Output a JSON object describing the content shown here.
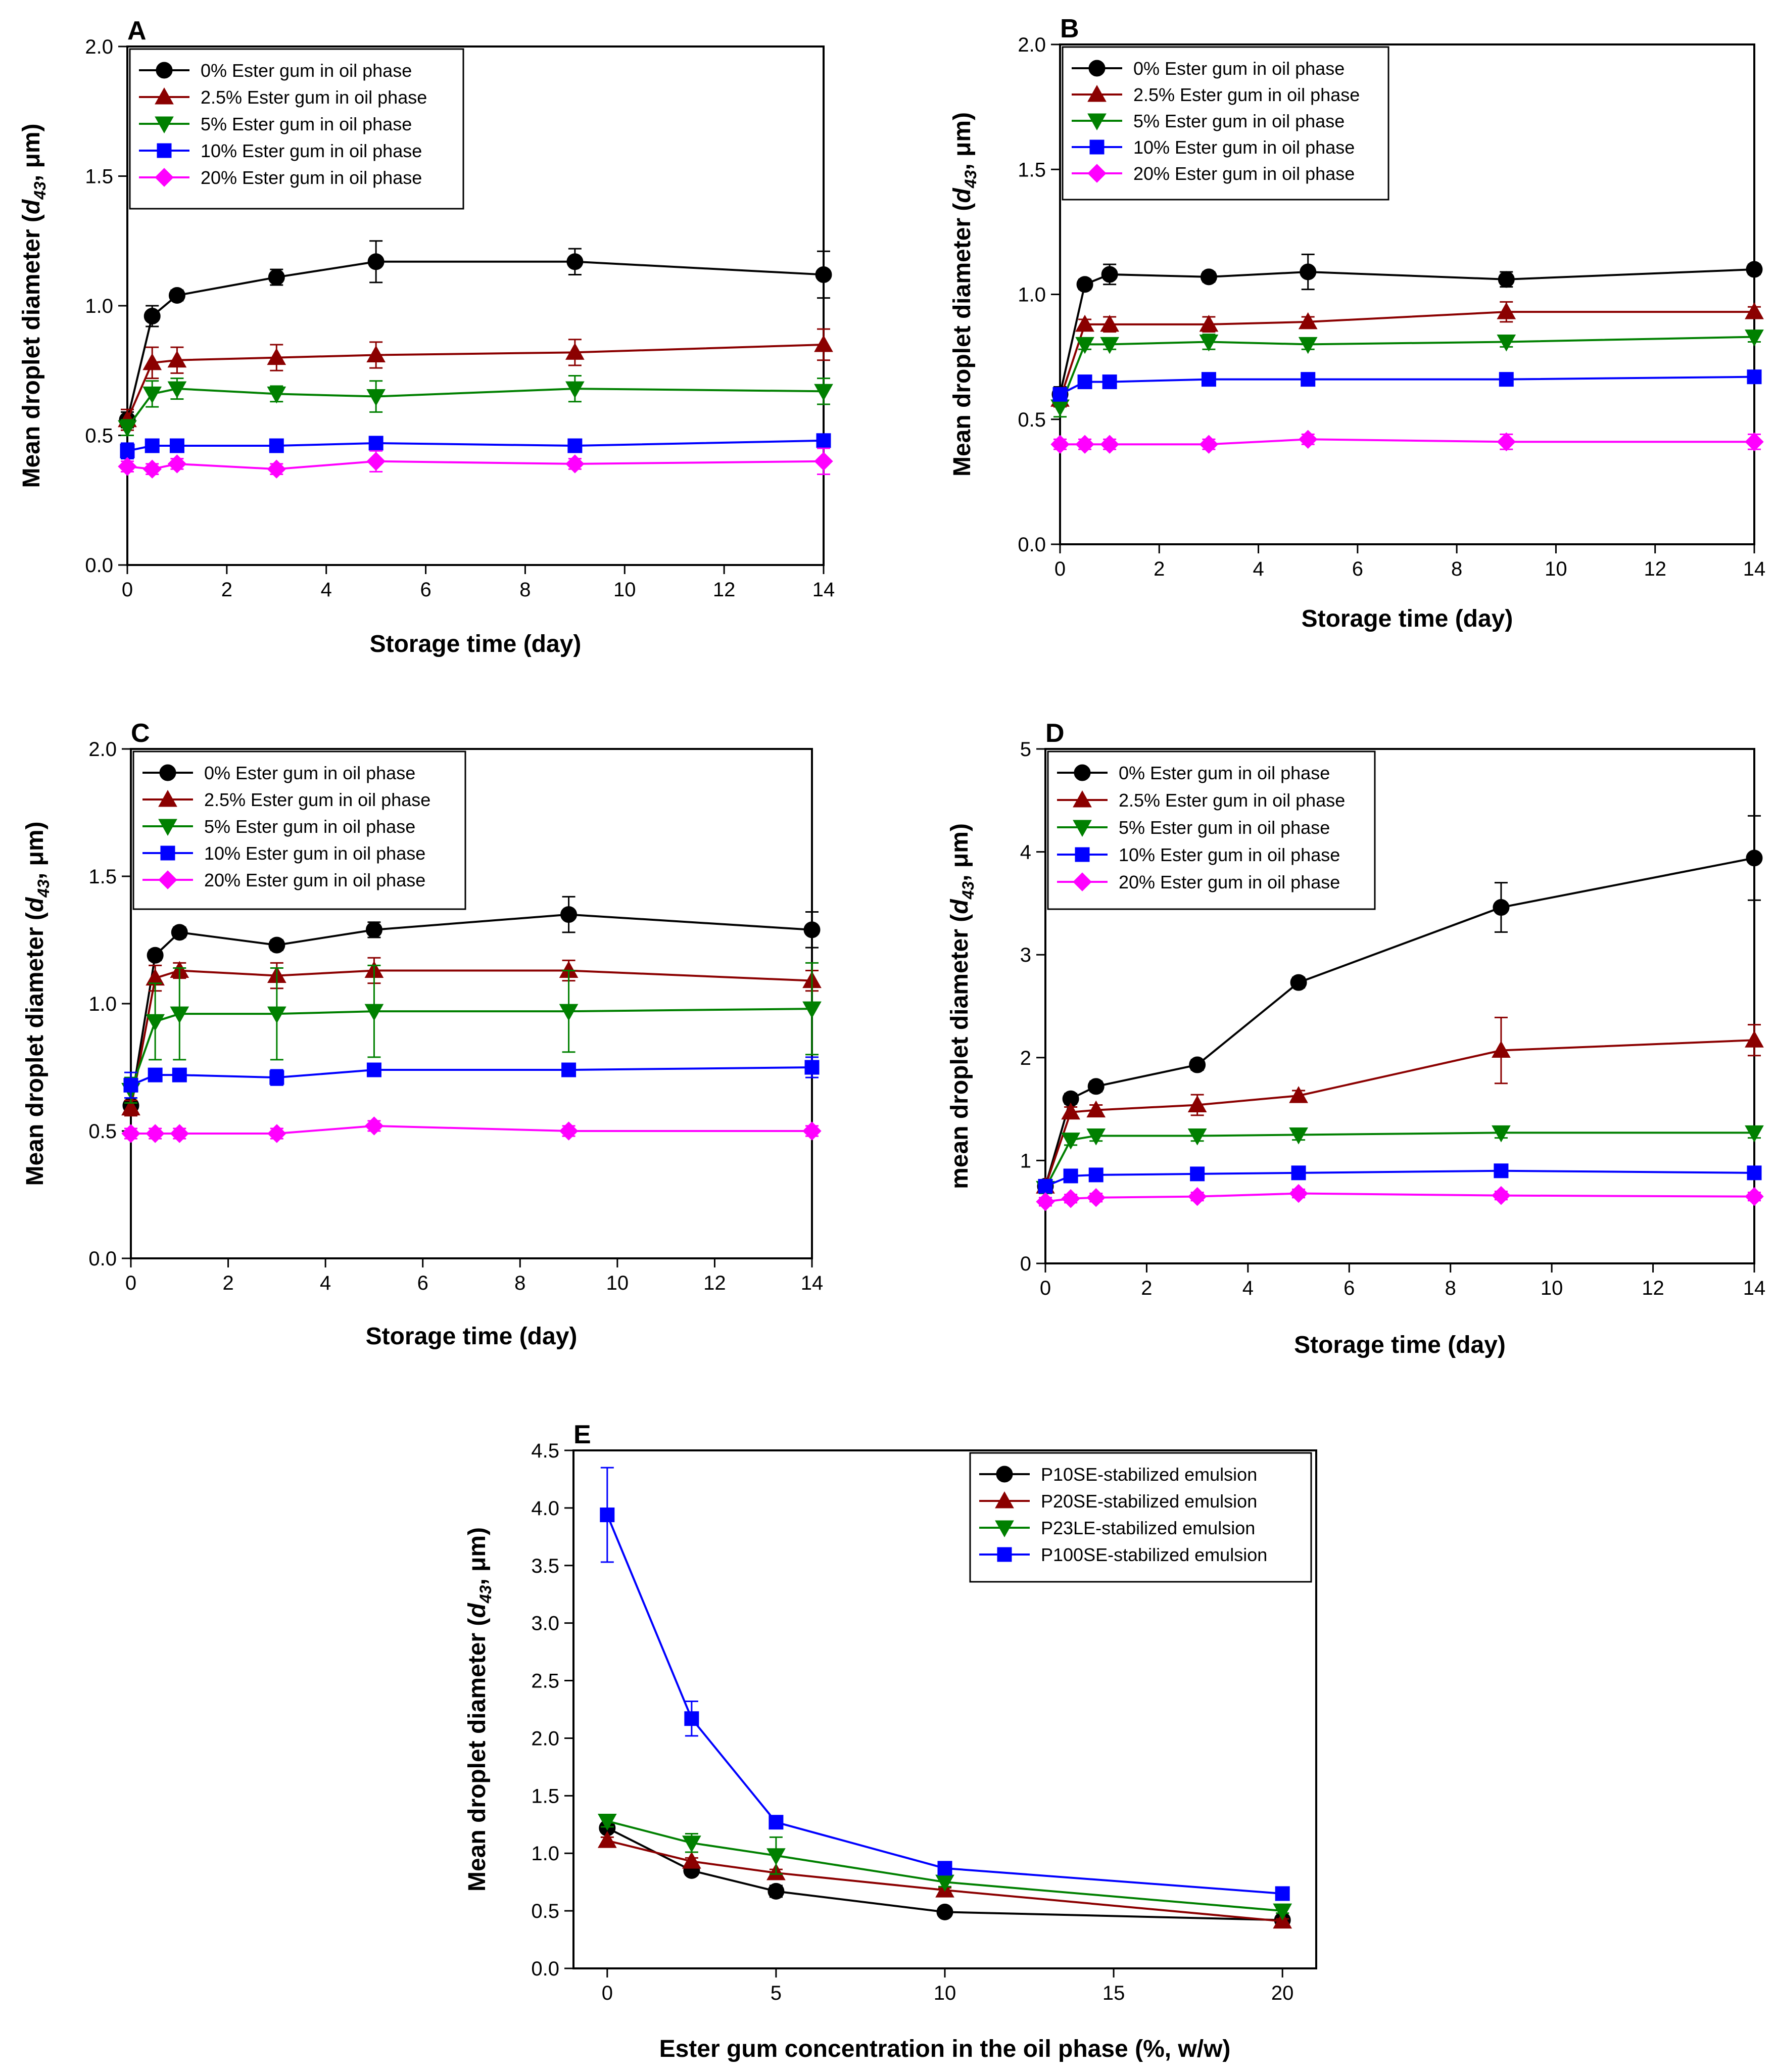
{
  "figure": {
    "colors": {
      "p0": "#000000",
      "p1": "#8b0000",
      "p2": "#008000",
      "p3": "#0000ff",
      "p4": "#ff00ff"
    }
  },
  "chart_data": [
    {
      "panel": "A",
      "type": "line",
      "title": "",
      "xlabel": "Storage time (day)",
      "ylabel": {
        "pre": "Mean droplet diameter (",
        "sym": "d",
        "sub": "43",
        "post": ", μm)"
      },
      "xlim": [
        0,
        14
      ],
      "ylim": [
        0,
        2.0
      ],
      "xticks": [
        0,
        2,
        4,
        6,
        8,
        10,
        12,
        14
      ],
      "xticklabels": [
        "0",
        "2",
        "4",
        "6",
        "8",
        "10",
        "12",
        "14"
      ],
      "yticks": [
        0,
        0.5,
        1.0,
        1.5,
        2.0
      ],
      "yticklabels": [
        "0.0",
        "0.5",
        "1.0",
        "1.5",
        "2.0"
      ],
      "legend_position": "top-left",
      "series": [
        {
          "name": "0% Ester gum in oil phase",
          "marker": "circle",
          "color": "#000000",
          "x": [
            0,
            0.5,
            1,
            3,
            5,
            9,
            14
          ],
          "y": [
            0.56,
            0.96,
            1.04,
            1.11,
            1.17,
            1.17,
            1.12
          ],
          "err": [
            0.03,
            0.04,
            0.02,
            0.03,
            0.08,
            0.05,
            0.09
          ]
        },
        {
          "name": "2.5% Ester gum in oil phase",
          "marker": "triangle-up",
          "color": "#8b0000",
          "x": [
            0,
            0.5,
            1,
            3,
            5,
            9,
            14
          ],
          "y": [
            0.56,
            0.78,
            0.79,
            0.8,
            0.81,
            0.82,
            0.85
          ],
          "err": [
            0.04,
            0.06,
            0.05,
            0.05,
            0.05,
            0.05,
            0.06
          ]
        },
        {
          "name": "5% Ester gum in oil phase",
          "marker": "triangle-down",
          "color": "#008000",
          "x": [
            0,
            0.5,
            1,
            3,
            5,
            9,
            14
          ],
          "y": [
            0.53,
            0.66,
            0.68,
            0.66,
            0.65,
            0.68,
            0.67
          ],
          "err": [
            0.03,
            0.05,
            0.04,
            0.03,
            0.06,
            0.05,
            0.05
          ]
        },
        {
          "name": "10% Ester gum in oil phase",
          "marker": "square",
          "color": "#0000ff",
          "x": [
            0,
            0.5,
            1,
            3,
            5,
            9,
            14
          ],
          "y": [
            0.44,
            0.46,
            0.46,
            0.46,
            0.47,
            0.46,
            0.48
          ],
          "err": [
            0.03,
            0.02,
            0.02,
            0.02,
            0.02,
            0.02,
            0.02
          ]
        },
        {
          "name": "20% Ester gum in oil phase",
          "marker": "diamond",
          "color": "#ff00ff",
          "x": [
            0,
            0.5,
            1,
            3,
            5,
            9,
            14
          ],
          "y": [
            0.38,
            0.37,
            0.39,
            0.37,
            0.4,
            0.39,
            0.4
          ],
          "err": [
            0.02,
            0.02,
            0.02,
            0.02,
            0.04,
            0.02,
            0.05
          ]
        }
      ]
    },
    {
      "panel": "B",
      "type": "line",
      "title": "",
      "xlabel": "Storage time (day)",
      "ylabel": {
        "pre": "Mean droplet diameter (",
        "sym": "d",
        "sub": "43",
        "post": ", μm)"
      },
      "xlim": [
        0,
        14
      ],
      "ylim": [
        0,
        2.0
      ],
      "xticks": [
        0,
        2,
        4,
        6,
        8,
        10,
        12,
        14
      ],
      "xticklabels": [
        "0",
        "2",
        "4",
        "6",
        "8",
        "10",
        "12",
        "14"
      ],
      "yticks": [
        0,
        0.5,
        1.0,
        1.5,
        2.0
      ],
      "yticklabels": [
        "0.0",
        "0.5",
        "1.0",
        "1.5",
        "2.0"
      ],
      "legend_position": "top-left",
      "series": [
        {
          "name": "0% Ester gum in oil phase",
          "marker": "circle",
          "color": "#000000",
          "x": [
            0,
            0.5,
            1,
            3,
            5,
            9,
            14
          ],
          "y": [
            0.6,
            1.04,
            1.08,
            1.07,
            1.09,
            1.06,
            1.1
          ],
          "err": [
            0.03,
            0.02,
            0.04,
            0.02,
            0.07,
            0.03,
            0.02
          ]
        },
        {
          "name": "2.5% Ester gum in oil phase",
          "marker": "triangle-up",
          "color": "#8b0000",
          "x": [
            0,
            0.5,
            1,
            3,
            5,
            9,
            14
          ],
          "y": [
            0.58,
            0.88,
            0.88,
            0.88,
            0.89,
            0.93,
            0.93
          ],
          "err": [
            0.03,
            0.02,
            0.03,
            0.03,
            0.02,
            0.04,
            0.02
          ]
        },
        {
          "name": "5% Ester gum in oil phase",
          "marker": "triangle-down",
          "color": "#008000",
          "x": [
            0,
            0.5,
            1,
            3,
            5,
            9,
            14
          ],
          "y": [
            0.55,
            0.8,
            0.8,
            0.81,
            0.8,
            0.81,
            0.83
          ],
          "err": [
            0.04,
            0.02,
            0.02,
            0.03,
            0.02,
            0.02,
            0.02
          ]
        },
        {
          "name": "10% Ester gum in oil phase",
          "marker": "square",
          "color": "#0000ff",
          "x": [
            0,
            0.5,
            1,
            3,
            5,
            9,
            14
          ],
          "y": [
            0.6,
            0.65,
            0.65,
            0.66,
            0.66,
            0.66,
            0.67
          ],
          "err": [
            0.02,
            0.02,
            0.02,
            0.02,
            0.02,
            0.02,
            0.02
          ]
        },
        {
          "name": "20% Ester gum in oil phase",
          "marker": "diamond",
          "color": "#ff00ff",
          "x": [
            0,
            0.5,
            1,
            3,
            5,
            9,
            14
          ],
          "y": [
            0.4,
            0.4,
            0.4,
            0.4,
            0.42,
            0.41,
            0.41
          ],
          "err": [
            0.02,
            0.02,
            0.02,
            0.02,
            0.02,
            0.03,
            0.03
          ]
        }
      ]
    },
    {
      "panel": "C",
      "type": "line",
      "title": "",
      "xlabel": "Storage time (day)",
      "ylabel": {
        "pre": "Mean droplet diameter (",
        "sym": "d",
        "sub": "43",
        "post": ", μm)"
      },
      "xlim": [
        0,
        14
      ],
      "ylim": [
        0,
        2.0
      ],
      "xticks": [
        0,
        2,
        4,
        6,
        8,
        10,
        12,
        14
      ],
      "xticklabels": [
        "0",
        "2",
        "4",
        "6",
        "8",
        "10",
        "12",
        "14"
      ],
      "yticks": [
        0,
        0.5,
        1.0,
        1.5,
        2.0
      ],
      "yticklabels": [
        "0.0",
        "0.5",
        "1.0",
        "1.5",
        "2.0"
      ],
      "legend_position": "top-left",
      "series": [
        {
          "name": "0% Ester gum in oil phase",
          "marker": "circle",
          "color": "#000000",
          "x": [
            0,
            0.5,
            1,
            3,
            5,
            9,
            14
          ],
          "y": [
            0.6,
            1.19,
            1.28,
            1.23,
            1.29,
            1.35,
            1.29
          ],
          "err": [
            0.03,
            0.02,
            0.02,
            0.02,
            0.03,
            0.07,
            0.07
          ]
        },
        {
          "name": "2.5% Ester gum in oil phase",
          "marker": "triangle-up",
          "color": "#8b0000",
          "x": [
            0,
            0.5,
            1,
            3,
            5,
            9,
            14
          ],
          "y": [
            0.59,
            1.1,
            1.13,
            1.11,
            1.13,
            1.13,
            1.09
          ],
          "err": [
            0.03,
            0.05,
            0.03,
            0.05,
            0.05,
            0.04,
            0.04
          ]
        },
        {
          "name": "5% Ester gum in oil phase",
          "marker": "triangle-down",
          "color": "#008000",
          "x": [
            0,
            0.5,
            1,
            3,
            5,
            9,
            14
          ],
          "y": [
            0.66,
            0.93,
            0.96,
            0.96,
            0.97,
            0.97,
            0.98
          ],
          "err": [
            0.05,
            0.15,
            0.18,
            0.18,
            0.18,
            0.16,
            0.18
          ]
        },
        {
          "name": "10% Ester gum in oil phase",
          "marker": "square",
          "color": "#0000ff",
          "x": [
            0,
            0.5,
            1,
            3,
            5,
            9,
            14
          ],
          "y": [
            0.68,
            0.72,
            0.72,
            0.71,
            0.74,
            0.74,
            0.75
          ],
          "err": [
            0.05,
            0.02,
            0.02,
            0.03,
            0.02,
            0.02,
            0.04
          ]
        },
        {
          "name": "20% Ester gum in oil phase",
          "marker": "diamond",
          "color": "#ff00ff",
          "x": [
            0,
            0.5,
            1,
            3,
            5,
            9,
            14
          ],
          "y": [
            0.49,
            0.49,
            0.49,
            0.49,
            0.52,
            0.5,
            0.5
          ],
          "err": [
            0.02,
            0.02,
            0.02,
            0.02,
            0.02,
            0.02,
            0.02
          ]
        }
      ]
    },
    {
      "panel": "D",
      "type": "line",
      "title": "",
      "xlabel": "Storage time (day)",
      "ylabel": {
        "pre": "mean droplet diameter (",
        "sym": "d",
        "sub": "43",
        "post": ", μm)"
      },
      "xlim": [
        0,
        14
      ],
      "ylim": [
        0,
        5
      ],
      "xticks": [
        0,
        2,
        4,
        6,
        8,
        10,
        12,
        14
      ],
      "xticklabels": [
        "0",
        "2",
        "4",
        "6",
        "8",
        "10",
        "12",
        "14"
      ],
      "yticks": [
        0,
        1,
        2,
        3,
        4,
        5
      ],
      "yticklabels": [
        "0",
        "1",
        "2",
        "3",
        "4",
        "5"
      ],
      "legend_position": "top-left",
      "series": [
        {
          "name": "0% Ester gum in oil phase",
          "marker": "circle",
          "color": "#000000",
          "x": [
            0,
            0.5,
            1,
            3,
            5,
            9,
            14
          ],
          "y": [
            0.75,
            1.6,
            1.72,
            1.93,
            2.73,
            3.46,
            3.94
          ],
          "err": [
            0.05,
            0.05,
            0.05,
            0.05,
            0.05,
            0.24,
            0.41
          ]
        },
        {
          "name": "2.5% Ester gum in oil phase",
          "marker": "triangle-up",
          "color": "#8b0000",
          "x": [
            0,
            0.5,
            1,
            3,
            5,
            9,
            14
          ],
          "y": [
            0.75,
            1.47,
            1.49,
            1.54,
            1.63,
            2.07,
            2.17
          ],
          "err": [
            0.05,
            0.05,
            0.05,
            0.1,
            0.05,
            0.32,
            0.15
          ]
        },
        {
          "name": "5% Ester gum in oil phase",
          "marker": "triangle-down",
          "color": "#008000",
          "x": [
            0,
            0.5,
            1,
            3,
            5,
            9,
            14
          ],
          "y": [
            0.73,
            1.2,
            1.24,
            1.24,
            1.25,
            1.27,
            1.27
          ],
          "err": [
            0.05,
            0.05,
            0.05,
            0.05,
            0.05,
            0.05,
            0.05
          ]
        },
        {
          "name": "10% Ester gum in oil phase",
          "marker": "square",
          "color": "#0000ff",
          "x": [
            0,
            0.5,
            1,
            3,
            5,
            9,
            14
          ],
          "y": [
            0.75,
            0.85,
            0.86,
            0.87,
            0.88,
            0.9,
            0.88
          ],
          "err": [
            0.04,
            0.04,
            0.04,
            0.04,
            0.04,
            0.04,
            0.04
          ]
        },
        {
          "name": "20% Ester gum in oil phase",
          "marker": "diamond",
          "color": "#ff00ff",
          "x": [
            0,
            0.5,
            1,
            3,
            5,
            9,
            14
          ],
          "y": [
            0.6,
            0.63,
            0.64,
            0.65,
            0.68,
            0.66,
            0.65
          ],
          "err": [
            0.04,
            0.04,
            0.04,
            0.04,
            0.04,
            0.04,
            0.04
          ]
        }
      ]
    },
    {
      "panel": "E",
      "type": "line",
      "title": "",
      "xlabel": "Ester gum concentration in the oil phase (%, w/w)",
      "ylabel": {
        "pre": "Mean droplet diameter (",
        "sym": "d",
        "sub": "43",
        "post": ", μm)"
      },
      "xlim": [
        -1,
        21
      ],
      "ylim": [
        0,
        4.5
      ],
      "xticks": [
        0,
        5,
        10,
        15,
        20
      ],
      "xticklabels": [
        "0",
        "5",
        "10",
        "15",
        "20"
      ],
      "yticks": [
        0,
        0.5,
        1.0,
        1.5,
        2.0,
        2.5,
        3.0,
        3.5,
        4.0,
        4.5
      ],
      "yticklabels": [
        "0.0",
        "0.5",
        "1.0",
        "1.5",
        "2.0",
        "2.5",
        "3.0",
        "3.5",
        "4.0",
        "4.5"
      ],
      "legend_position": "top-right",
      "series": [
        {
          "name": "P10SE-stabilized emulsion",
          "marker": "circle",
          "color": "#000000",
          "x": [
            0,
            2.5,
            5,
            10,
            20
          ],
          "y": [
            1.22,
            0.85,
            0.67,
            0.49,
            0.42
          ],
          "err": [
            0.03,
            0.04,
            0.05,
            0.02,
            0.02
          ]
        },
        {
          "name": "P20SE-stabilized emulsion",
          "marker": "triangle-up",
          "color": "#8b0000",
          "x": [
            0,
            2.5,
            5,
            10,
            20
          ],
          "y": [
            1.11,
            0.93,
            0.83,
            0.68,
            0.41
          ],
          "err": [
            0.03,
            0.03,
            0.03,
            0.02,
            0.02
          ]
        },
        {
          "name": "P23LE-stabilized emulsion",
          "marker": "triangle-down",
          "color": "#008000",
          "x": [
            0,
            2.5,
            5,
            10,
            20
          ],
          "y": [
            1.28,
            1.09,
            0.98,
            0.75,
            0.5
          ],
          "err": [
            0.05,
            0.08,
            0.16,
            0.04,
            0.02
          ]
        },
        {
          "name": "P100SE-stabilized emulsion",
          "marker": "square",
          "color": "#0000ff",
          "x": [
            0,
            2.5,
            5,
            10,
            20
          ],
          "y": [
            3.94,
            2.17,
            1.27,
            0.87,
            0.65
          ],
          "err": [
            0.41,
            0.15,
            0.03,
            0.03,
            0.03
          ]
        }
      ]
    }
  ]
}
